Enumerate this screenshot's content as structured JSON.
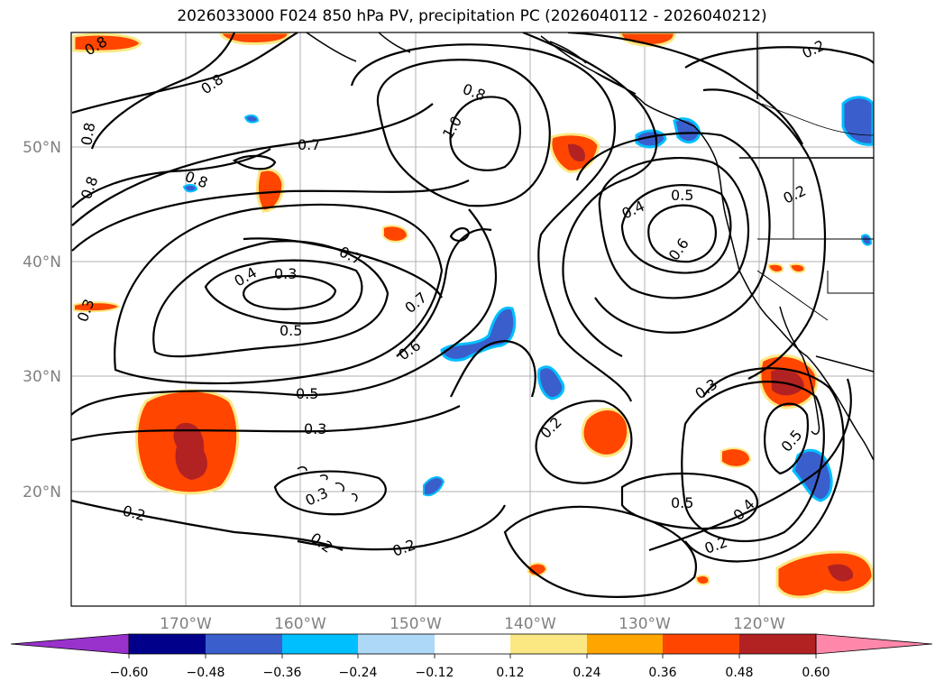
{
  "title": "2026033000 F024 850 hPa PV, precipitation PC (2026040112 - 2026040212)",
  "map": {
    "lat_labels": [
      "50°N",
      "40°N",
      "30°N",
      "20°N"
    ],
    "lon_labels": [
      "170°W",
      "160°W",
      "150°W",
      "140°W",
      "130°W",
      "120°W"
    ],
    "contour_labels": [
      "0.8",
      "0.8",
      "0.8",
      "0.8",
      "0.8",
      "0.7",
      "0.7",
      "0.7",
      "1.0",
      "0.8",
      "0.2",
      "0.2",
      "0.4",
      "0.5",
      "0.6",
      "0.4",
      "0.3",
      "0.5",
      "0.5",
      "0.3",
      "0.3",
      "0.6",
      "0.3",
      "0.2",
      "0.2",
      "0.5",
      "0.5",
      "0.4",
      "0.2",
      "0.3",
      "0.2",
      "0.2"
    ]
  },
  "colorbar": {
    "ticks": [
      "−0.60",
      "−0.48",
      "−0.36",
      "−0.24",
      "−0.12",
      "0.12",
      "0.24",
      "0.36",
      "0.48",
      "0.60"
    ],
    "colors": [
      "#9932cc",
      "#00008b",
      "#3a5fcd",
      "#00bfff",
      "#add8f6",
      "#ffffff",
      "#fce883",
      "#ffa500",
      "#ff4500",
      "#b22222",
      "#ff88aa"
    ]
  },
  "colors": {
    "pos_low": "#fce883",
    "pos_mid": "#ffa500",
    "pos_high": "#ff4500",
    "pos_max": "#b22222",
    "neg_low": "#add8f6",
    "neg_mid": "#00bfff",
    "neg_high": "#3a5fcd"
  }
}
